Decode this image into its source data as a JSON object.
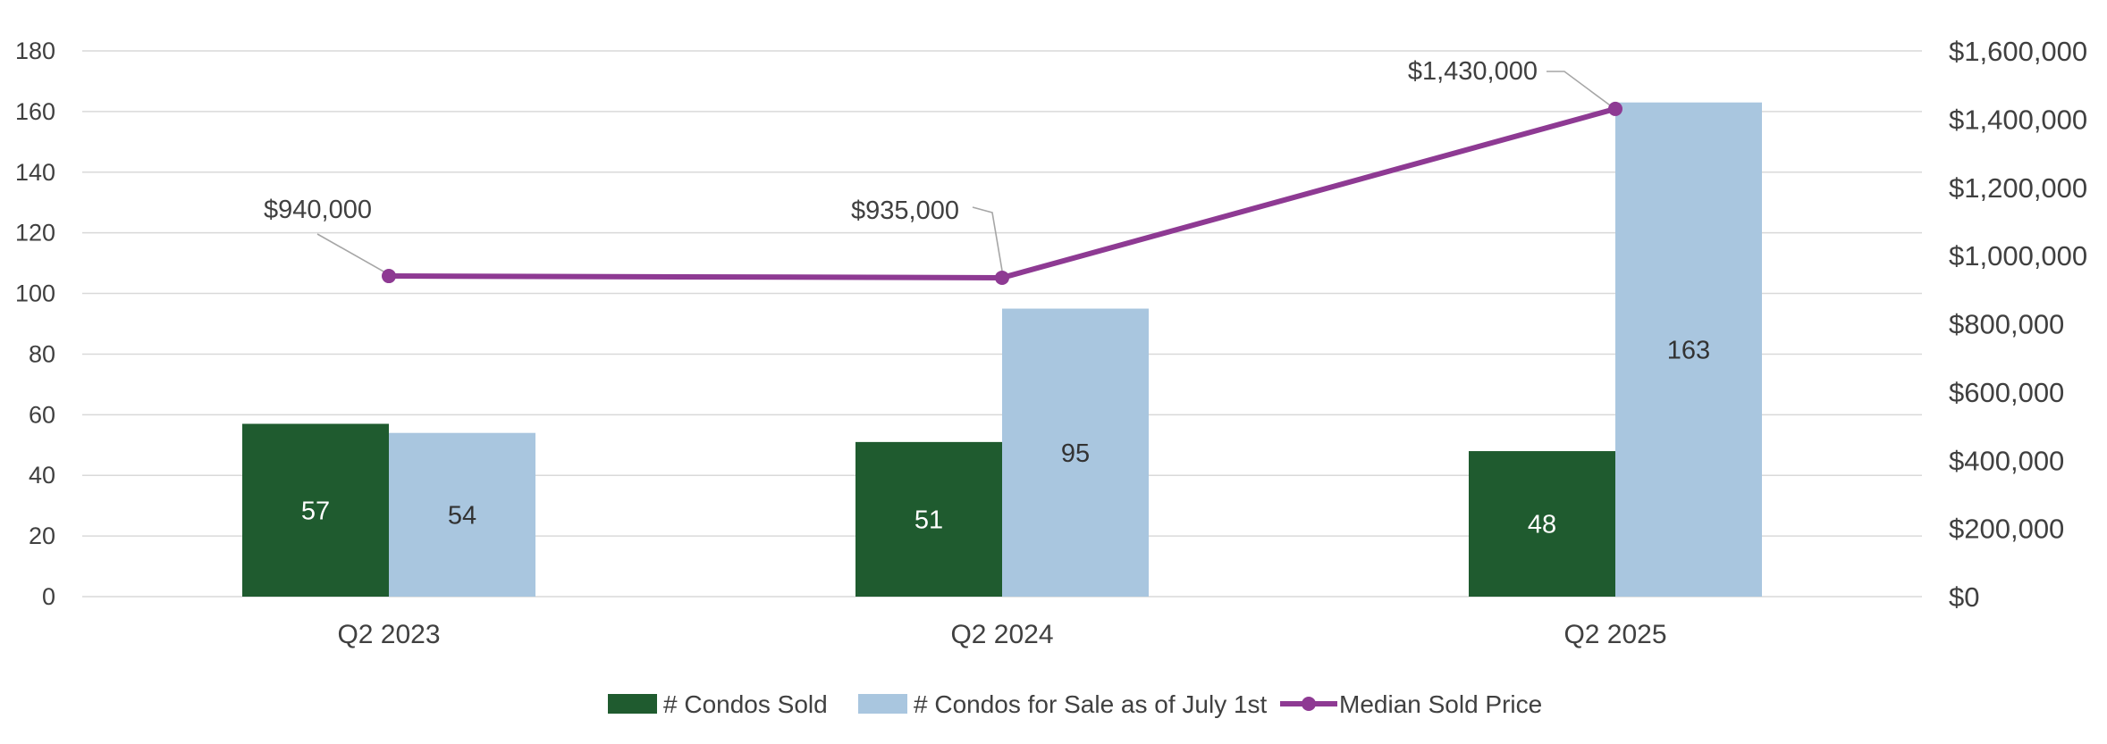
{
  "chart_data": {
    "type": "bar+line",
    "title": "",
    "categories": [
      "Q2 2023",
      "Q2 2024",
      "Q2 2025"
    ],
    "series": [
      {
        "name": "# Condos Sold",
        "kind": "bar",
        "axis": "left",
        "color": "#1f5b2f",
        "label_color": "#ffffff",
        "values": [
          57,
          51,
          48
        ],
        "labels": [
          "57",
          "51",
          "48"
        ]
      },
      {
        "name": "# Condos for Sale as of July 1st",
        "kind": "bar",
        "axis": "left",
        "color": "#a9c6df",
        "label_color": "#333333",
        "values": [
          54,
          95,
          163
        ],
        "labels": [
          "54",
          "95",
          "163"
        ]
      },
      {
        "name": "Median Sold Price",
        "kind": "line",
        "axis": "right",
        "color": "#8e3a93",
        "values": [
          940000,
          935000,
          1430000
        ],
        "labels": [
          "$940,000",
          "$935,000",
          "$1,430,000"
        ]
      }
    ],
    "left_axis": {
      "min": 0,
      "max": 180,
      "step": 20,
      "ticks": [
        "0",
        "20",
        "40",
        "60",
        "80",
        "100",
        "120",
        "140",
        "160",
        "180"
      ]
    },
    "right_axis": {
      "min": 0,
      "max": 1600000,
      "step": 200000,
      "ticks": [
        "$0",
        "$200,000",
        "$400,000",
        "$600,000",
        "$800,000",
        "$1,000,000",
        "$1,200,000",
        "$1,400,000",
        "$1,600,000"
      ]
    },
    "grid": true,
    "legend_position": "bottom-center",
    "gridline_color": "#d9d9d9"
  }
}
